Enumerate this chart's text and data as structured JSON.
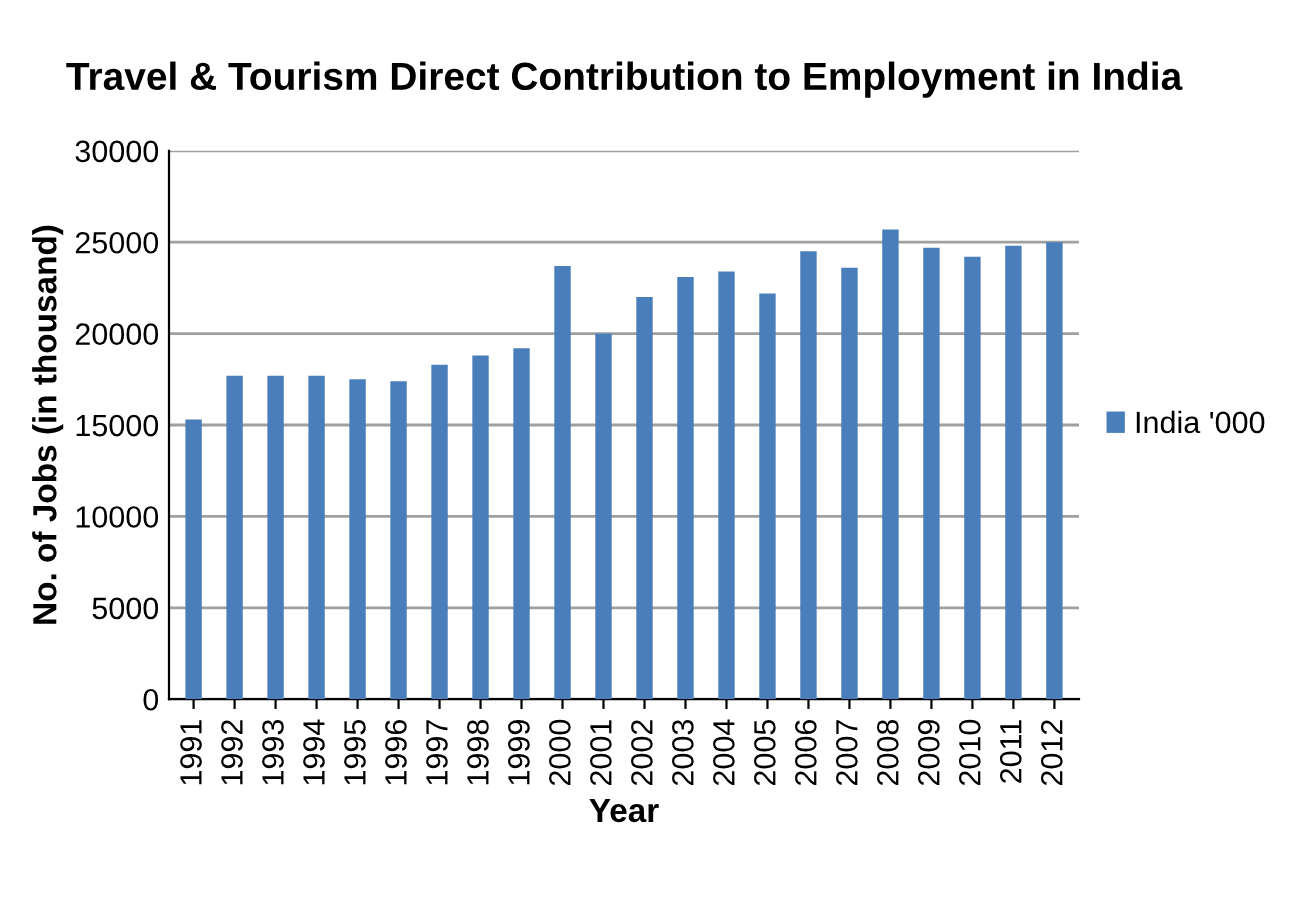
{
  "chart_data": {
    "type": "bar",
    "title": "Travel & Tourism Direct Contribution to Employment in India",
    "xlabel": "Year",
    "ylabel": "No. of Jobs (in thousand)",
    "categories": [
      "1991",
      "1992",
      "1993",
      "1994",
      "1995",
      "1996",
      "1997",
      "1998",
      "1999",
      "2000",
      "2001",
      "2002",
      "2003",
      "2004",
      "2005",
      "2006",
      "2007",
      "2008",
      "2009",
      "2010",
      "2011",
      "2012"
    ],
    "series": [
      {
        "name": "India '000",
        "color": "#4a7ebb",
        "values": [
          15300,
          17700,
          17700,
          17700,
          17500,
          17400,
          18300,
          18800,
          19200,
          23700,
          20000,
          22000,
          23100,
          23400,
          22200,
          24500,
          23600,
          25700,
          24700,
          24200,
          24800,
          25000
        ]
      }
    ],
    "ylim": [
      0,
      30000
    ],
    "yticks": [
      0,
      5000,
      10000,
      15000,
      20000,
      25000,
      30000
    ],
    "grid": "y",
    "legend": "right"
  }
}
